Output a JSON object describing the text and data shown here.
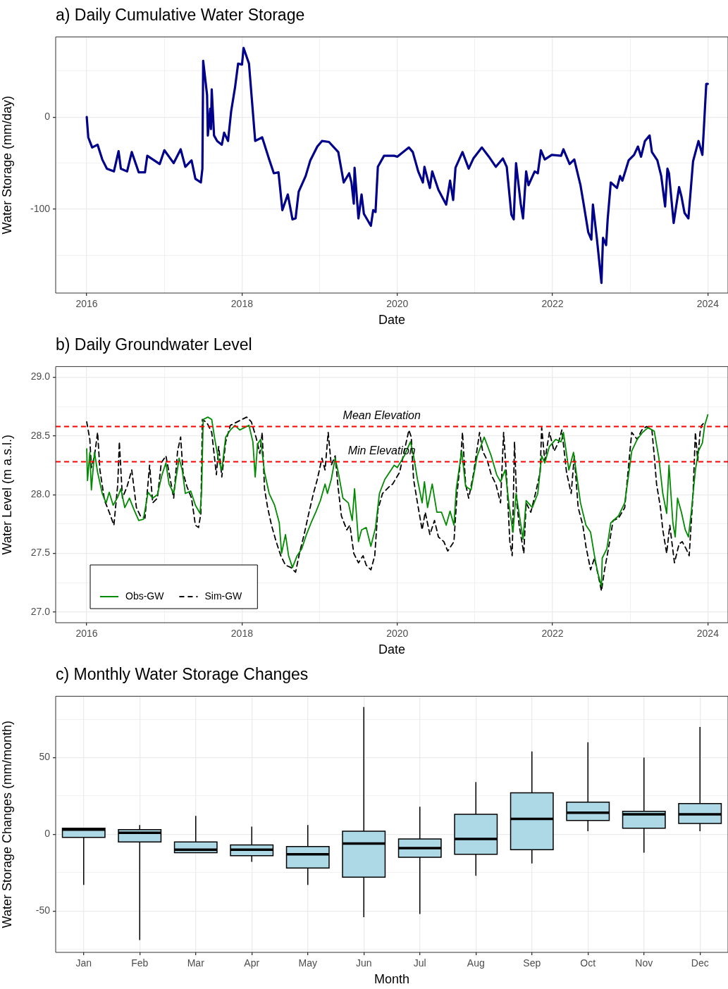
{
  "chart_data": [
    {
      "type": "line",
      "title": "a) Daily Cumulative Water Storage",
      "xlabel": "Date",
      "ylabel": "Water Storage (mm/day)",
      "xlim": [
        2015.6,
        2024.26
      ],
      "ylim": [
        -191,
        87
      ],
      "xticks": [
        2016,
        {
          "value": 2017,
          "label": null
        },
        2018,
        {
          "value": 2019,
          "label": null
        },
        2020,
        {
          "value": 2021,
          "label": null
        },
        2022,
        {
          "value": 2023,
          "label": null
        },
        2024
      ],
      "yticks": [
        {
          "value": -150,
          "label": null
        },
        -100,
        {
          "value": -50,
          "label": null
        },
        0,
        {
          "value": 50,
          "label": null
        }
      ],
      "grid": true,
      "series": [
        {
          "color": "#00008b",
          "x": [
            2016.0,
            2016.02,
            2016.07,
            2016.14,
            2016.2,
            2016.26,
            2016.35,
            2016.41,
            2016.44,
            2016.52,
            2016.58,
            2016.67,
            2016.75,
            2016.78,
            2016.94,
            2017.0,
            2017.12,
            2017.21,
            2017.27,
            2017.35,
            2017.4,
            2017.47,
            2017.49,
            2017.5,
            2017.55,
            2017.56,
            2017.59,
            2017.6,
            2017.61,
            2017.64,
            2017.68,
            2017.74,
            2017.77,
            2017.82,
            2017.86,
            2017.91,
            2017.95,
            2018.0,
            2018.02,
            2018.09,
            2018.17,
            2018.26,
            2018.35,
            2018.41,
            2018.47,
            2018.52,
            2018.59,
            2018.65,
            2018.69,
            2018.73,
            2018.82,
            2018.88,
            2018.97,
            2019.03,
            2019.12,
            2019.24,
            2019.31,
            2019.38,
            2019.41,
            2019.44,
            2019.45,
            2019.5,
            2019.54,
            2019.57,
            2019.66,
            2019.69,
            2019.72,
            2019.75,
            2019.83,
            2019.96,
            2020.0,
            2020.15,
            2020.2,
            2020.27,
            2020.33,
            2020.35,
            2020.42,
            2020.45,
            2020.53,
            2020.63,
            2020.68,
            2020.72,
            2020.75,
            2020.84,
            2020.92,
            2020.98,
            2021.09,
            2021.18,
            2021.27,
            2021.36,
            2021.41,
            2021.47,
            2021.5,
            2021.53,
            2021.59,
            2021.62,
            2021.66,
            2021.69,
            2021.77,
            2021.81,
            2021.85,
            2021.9,
            2021.99,
            2022.11,
            2022.14,
            2022.22,
            2022.28,
            2022.36,
            2022.4,
            2022.46,
            2022.5,
            2022.52,
            2022.57,
            2022.63,
            2022.65,
            2022.69,
            2022.71,
            2022.75,
            2022.83,
            2022.87,
            2022.9,
            2022.98,
            2023.05,
            2023.1,
            2023.14,
            2023.19,
            2023.25,
            2023.28,
            2023.35,
            2023.4,
            2023.45,
            2023.48,
            2023.5,
            2023.56,
            2023.63,
            2023.66,
            2023.7,
            2023.75,
            2023.81,
            2023.88,
            2023.93,
            2023.95,
            2023.98,
            2024.0
          ],
          "values": [
            0,
            -22,
            -33,
            -30,
            -46,
            -56,
            -59,
            -37,
            -56,
            -59,
            -38,
            -60,
            -60,
            -42,
            -51,
            -36,
            -50,
            -35,
            -54,
            -47,
            -67,
            -71,
            -56,
            61,
            24,
            -20,
            9,
            -13,
            30,
            -20,
            -26,
            -30,
            -17,
            -26,
            6,
            32,
            58,
            57,
            75,
            58,
            -26,
            -22,
            -46,
            -61,
            -60,
            -101,
            -84,
            -111,
            -110,
            -81,
            -64,
            -47,
            -32,
            -26,
            -27,
            -38,
            -71,
            -61,
            -71,
            -94,
            -55,
            -110,
            -84,
            -105,
            -118,
            -101,
            -103,
            -54,
            -42,
            -42,
            -43,
            -33,
            -38,
            -59,
            -71,
            -54,
            -77,
            -59,
            -79,
            -95,
            -69,
            -90,
            -55,
            -38,
            -56,
            -45,
            -33,
            -43,
            -54,
            -45,
            -54,
            -106,
            -111,
            -50,
            -94,
            -110,
            -59,
            -74,
            -59,
            -61,
            -36,
            -46,
            -41,
            -42,
            -35,
            -51,
            -46,
            -74,
            -94,
            -125,
            -133,
            -95,
            -131,
            -180,
            -131,
            -139,
            -111,
            -71,
            -77,
            -64,
            -69,
            -47,
            -41,
            -32,
            -43,
            -26,
            -20,
            -38,
            -47,
            -64,
            -97,
            -56,
            -61,
            -115,
            -76,
            -86,
            -104,
            -110,
            -48,
            -26,
            -41,
            -11,
            36,
            36
          ]
        }
      ]
    },
    {
      "type": "line",
      "title": "b) Daily Groundwater Level",
      "xlabel": "Date",
      "ylabel": "Water Level (m a.s.l.)",
      "xlim": [
        2015.6,
        2024.26
      ],
      "ylim": [
        26.91,
        29.09
      ],
      "xticks": [
        2016,
        {
          "value": 2017,
          "label": null
        },
        2018,
        {
          "value": 2019,
          "label": null
        },
        2020,
        {
          "value": 2021,
          "label": null
        },
        2022,
        {
          "value": 2023,
          "label": null
        },
        2024
      ],
      "yticks": [
        {
          "value": 27,
          "label": "27.0"
        },
        {
          "value": 27.25,
          "label": null
        },
        27.5,
        {
          "value": 27.75,
          "label": null
        },
        {
          "value": 28,
          "label": "28.0"
        },
        {
          "value": 28.25,
          "label": null
        },
        28.5,
        {
          "value": 28.75,
          "label": null
        },
        {
          "value": 29,
          "label": "29.0"
        }
      ],
      "grid": true,
      "legend": "bottom left",
      "ref_lines": [
        {
          "axis": "y",
          "value": 28.58,
          "label": "Mean Elevation",
          "color": "#ff0000",
          "line_style": "dashed"
        },
        {
          "axis": "y",
          "value": 28.28,
          "label": "Min Elevation",
          "color": "#ff0000",
          "line_style": "dashed"
        }
      ],
      "series": [
        {
          "name": "Obs-GW",
          "color": "#008b00",
          "x": [
            2016.0,
            2016.01,
            2016.04,
            2016.06,
            2016.1,
            2016.14,
            2016.2,
            2016.25,
            2016.29,
            2016.34,
            2016.4,
            2016.44,
            2016.49,
            2016.55,
            2016.61,
            2016.67,
            2016.73,
            2016.79,
            2016.85,
            2016.91,
            2016.97,
            2017.02,
            2017.06,
            2017.12,
            2017.19,
            2017.23,
            2017.27,
            2017.34,
            2017.4,
            2017.46,
            2017.48,
            2017.5,
            2017.56,
            2017.61,
            2017.65,
            2017.7,
            2017.74,
            2017.79,
            2017.85,
            2017.91,
            2017.97,
            2018.03,
            2018.09,
            2018.14,
            2018.17,
            2018.2,
            2018.24,
            2018.29,
            2018.35,
            2018.42,
            2018.48,
            2018.51,
            2018.56,
            2018.6,
            2018.65,
            2018.71,
            2018.77,
            2018.83,
            2018.89,
            2018.95,
            2019.01,
            2019.07,
            2019.1,
            2019.15,
            2019.2,
            2019.24,
            2019.3,
            2019.37,
            2019.42,
            2019.45,
            2019.5,
            2019.54,
            2019.6,
            2019.66,
            2019.72,
            2019.77,
            2019.84,
            2019.96,
            2020.0,
            2020.09,
            2020.17,
            2020.21,
            2020.26,
            2020.32,
            2020.35,
            2020.39,
            2020.45,
            2020.51,
            2020.57,
            2020.63,
            2020.68,
            2020.73,
            2020.76,
            2020.83,
            2020.88,
            2020.95,
            2021.03,
            2021.12,
            2021.21,
            2021.28,
            2021.33,
            2021.39,
            2021.44,
            2021.49,
            2021.53,
            2021.62,
            2021.66,
            2021.74,
            2021.81,
            2021.86,
            2021.9,
            2021.96,
            2022.04,
            2022.11,
            2022.14,
            2022.21,
            2022.27,
            2022.36,
            2022.43,
            2022.49,
            2022.54,
            2022.58,
            2022.63,
            2022.64,
            2022.7,
            2022.75,
            2022.85,
            2022.93,
            2022.98,
            2023.02,
            2023.09,
            2023.16,
            2023.23,
            2023.31,
            2023.37,
            2023.42,
            2023.47,
            2023.5,
            2023.55,
            2023.58,
            2023.61,
            2023.66,
            2023.71,
            2023.75,
            2023.79,
            2023.84,
            2023.88,
            2023.93,
            2023.96,
            2024.0
          ],
          "values": [
            28.39,
            28.12,
            28.36,
            28.04,
            28.36,
            28.19,
            28.01,
            27.93,
            28.02,
            27.91,
            27.98,
            28.05,
            27.89,
            27.97,
            27.87,
            27.78,
            27.79,
            28.02,
            27.97,
            28.0,
            28.17,
            28.27,
            28.09,
            28.01,
            28.31,
            28.21,
            28.01,
            28.03,
            27.91,
            27.84,
            28.03,
            28.64,
            28.66,
            28.64,
            28.47,
            28.29,
            28.21,
            28.49,
            28.55,
            28.59,
            28.55,
            28.57,
            28.59,
            28.45,
            28.15,
            28.43,
            28.47,
            28.19,
            28.01,
            27.91,
            27.76,
            27.5,
            27.66,
            27.48,
            27.38,
            27.48,
            27.54,
            27.66,
            27.76,
            27.85,
            27.95,
            28.09,
            28.01,
            28.13,
            28.31,
            28.19,
            27.97,
            27.93,
            27.78,
            28.05,
            27.6,
            27.7,
            27.72,
            27.56,
            27.72,
            28.01,
            28.13,
            28.25,
            28.23,
            28.33,
            28.45,
            28.33,
            28.13,
            27.93,
            28.11,
            27.89,
            28.09,
            27.85,
            27.85,
            27.74,
            27.86,
            27.74,
            28.05,
            28.37,
            28.07,
            28.04,
            28.33,
            28.49,
            28.33,
            28.17,
            28.11,
            28.21,
            27.91,
            27.68,
            28.01,
            27.62,
            27.95,
            27.89,
            28.01,
            28.33,
            28.27,
            28.41,
            28.47,
            28.45,
            28.53,
            28.21,
            28.36,
            27.93,
            27.74,
            27.68,
            27.48,
            27.34,
            27.22,
            27.46,
            27.54,
            27.76,
            27.82,
            27.93,
            28.17,
            28.37,
            28.47,
            28.53,
            28.57,
            28.54,
            28.31,
            28.01,
            27.84,
            28.25,
            27.76,
            27.64,
            27.97,
            27.85,
            27.7,
            27.64,
            27.87,
            28.21,
            28.37,
            28.44,
            28.59,
            28.68
          ]
        },
        {
          "name": "Sim-GW",
          "color": "#000000",
          "line_style": "dashed",
          "x": [
            2016.0,
            2016.04,
            2016.06,
            2016.1,
            2016.14,
            2016.17,
            2016.23,
            2016.29,
            2016.35,
            2016.4,
            2016.42,
            2016.46,
            2016.52,
            2016.58,
            2016.64,
            2016.69,
            2016.75,
            2016.81,
            2016.85,
            2016.91,
            2016.96,
            2017.02,
            2017.06,
            2017.12,
            2017.17,
            2017.21,
            2017.24,
            2017.29,
            2017.35,
            2017.4,
            2017.44,
            2017.47,
            2017.49,
            2017.55,
            2017.61,
            2017.67,
            2017.7,
            2017.74,
            2017.79,
            2017.85,
            2017.91,
            2018.0,
            2018.06,
            2018.12,
            2018.18,
            2018.23,
            2018.26,
            2018.29,
            2018.33,
            2018.38,
            2018.44,
            2018.5,
            2018.56,
            2018.63,
            2018.69,
            2018.74,
            2018.8,
            2018.86,
            2018.92,
            2018.97,
            2019.03,
            2019.07,
            2019.11,
            2019.15,
            2019.2,
            2019.24,
            2019.28,
            2019.35,
            2019.39,
            2019.44,
            2019.5,
            2019.56,
            2019.6,
            2019.66,
            2019.71,
            2019.75,
            2019.81,
            2019.9,
            2019.94,
            2020.03,
            2020.09,
            2020.15,
            2020.18,
            2020.21,
            2020.26,
            2020.32,
            2020.36,
            2020.42,
            2020.48,
            2020.53,
            2020.6,
            2020.65,
            2020.73,
            2020.77,
            2020.82,
            2020.84,
            2020.88,
            2020.92,
            2020.98,
            2021.06,
            2021.1,
            2021.16,
            2021.21,
            2021.27,
            2021.33,
            2021.37,
            2021.41,
            2021.45,
            2021.48,
            2021.51,
            2021.54,
            2021.57,
            2021.63,
            2021.66,
            2021.72,
            2021.78,
            2021.84,
            2021.86,
            2021.9,
            2021.96,
            2022.02,
            2022.08,
            2022.12,
            2022.18,
            2022.24,
            2022.28,
            2022.33,
            2022.39,
            2022.43,
            2022.49,
            2022.54,
            2022.58,
            2022.63,
            2022.67,
            2022.72,
            2022.78,
            2022.85,
            2022.93,
            2022.98,
            2023.02,
            2023.09,
            2023.15,
            2023.21,
            2023.28,
            2023.31,
            2023.34,
            2023.39,
            2023.42,
            2023.47,
            2023.51,
            2023.57,
            2023.63,
            2023.67,
            2023.72,
            2023.76,
            2023.81,
            2023.84,
            2023.87,
            2023.9,
            2023.92,
            2023.95
          ],
          "values": [
            28.62,
            28.47,
            28.23,
            28.33,
            28.53,
            28.21,
            27.95,
            27.85,
            27.74,
            28.09,
            28.45,
            27.97,
            28.07,
            28.21,
            27.89,
            27.82,
            27.8,
            28.25,
            27.93,
            27.97,
            28.27,
            28.33,
            28.19,
            27.97,
            28.37,
            28.49,
            28.19,
            28.07,
            27.97,
            27.74,
            27.72,
            27.84,
            28.64,
            28.61,
            28.53,
            28.17,
            28.41,
            28.15,
            28.45,
            28.59,
            28.61,
            28.64,
            28.66,
            28.62,
            28.49,
            28.35,
            28.53,
            28.05,
            27.89,
            27.74,
            27.6,
            27.48,
            27.4,
            27.38,
            27.34,
            27.5,
            27.66,
            27.84,
            28.01,
            28.13,
            28.31,
            28.21,
            28.53,
            28.25,
            28.33,
            28.05,
            27.82,
            27.7,
            27.74,
            27.5,
            27.42,
            27.48,
            27.4,
            27.36,
            27.48,
            27.87,
            28.01,
            28.07,
            28.09,
            28.19,
            28.37,
            28.55,
            28.49,
            28.13,
            27.93,
            27.7,
            27.85,
            27.66,
            27.78,
            27.64,
            27.6,
            27.52,
            27.6,
            28.01,
            28.33,
            28.53,
            28.09,
            27.97,
            28.17,
            28.53,
            28.37,
            28.29,
            28.17,
            28.09,
            27.93,
            28.53,
            28.13,
            27.6,
            27.48,
            28.45,
            27.93,
            27.74,
            27.5,
            27.93,
            27.85,
            28.01,
            28.19,
            28.57,
            28.29,
            28.53,
            28.37,
            28.45,
            28.55,
            28.19,
            28.01,
            28.33,
            27.89,
            27.74,
            27.56,
            27.36,
            27.46,
            27.34,
            27.18,
            27.36,
            27.54,
            27.78,
            27.8,
            27.89,
            28.25,
            28.53,
            28.47,
            28.55,
            28.58,
            28.55,
            28.33,
            28.09,
            27.89,
            27.7,
            27.5,
            27.74,
            27.42,
            27.58,
            27.6,
            27.54,
            27.48,
            28.01,
            28.53,
            28.29,
            28.53,
            28.59,
            28.61
          ]
        }
      ]
    },
    {
      "type": "box",
      "title": "c) Monthly Water Storage Changes",
      "xlabel": "Month",
      "ylabel": "Water Storage Changes (mm/month)",
      "ylim": [
        -77,
        90
      ],
      "yticks": [
        {
          "value": -75,
          "label": null
        },
        -50,
        {
          "value": -25,
          "label": null
        },
        0,
        {
          "value": 25,
          "label": null
        },
        50,
        {
          "value": 75,
          "label": null
        }
      ],
      "grid": true,
      "color": "#add8e6",
      "categories": [
        "Jan",
        "Feb",
        "Mar",
        "Apr",
        "May",
        "Jun",
        "Jul",
        "Aug",
        "Sep",
        "Oct",
        "Nov",
        "Dec"
      ],
      "boxes": [
        {
          "low": -33,
          "q1": -2,
          "median": 3,
          "q3": 4,
          "high": 4
        },
        {
          "low": -69,
          "q1": -5,
          "median": 1,
          "q3": 3,
          "high": 6
        },
        {
          "low": -12,
          "q1": -12,
          "median": -10,
          "q3": -5,
          "high": 12
        },
        {
          "low": -18,
          "q1": -14,
          "median": -10,
          "q3": -7,
          "high": 5
        },
        {
          "low": -33,
          "q1": -22,
          "median": -13,
          "q3": -8,
          "high": 6
        },
        {
          "low": -54,
          "q1": -28,
          "median": -6,
          "q3": 2,
          "high": 83
        },
        {
          "low": -52,
          "q1": -15,
          "median": -9,
          "q3": -3,
          "high": 18
        },
        {
          "low": -27,
          "q1": -13,
          "median": -3,
          "q3": 13,
          "high": 34
        },
        {
          "low": -19,
          "q1": -10,
          "median": 10,
          "q3": 27,
          "high": 54
        },
        {
          "low": 2,
          "q1": 9,
          "median": 14,
          "q3": 21,
          "high": 60
        },
        {
          "low": -12,
          "q1": 4,
          "median": 13,
          "q3": 15,
          "high": 50
        },
        {
          "low": 2,
          "q1": 7,
          "median": 13,
          "q3": 20,
          "high": 70
        }
      ]
    }
  ]
}
